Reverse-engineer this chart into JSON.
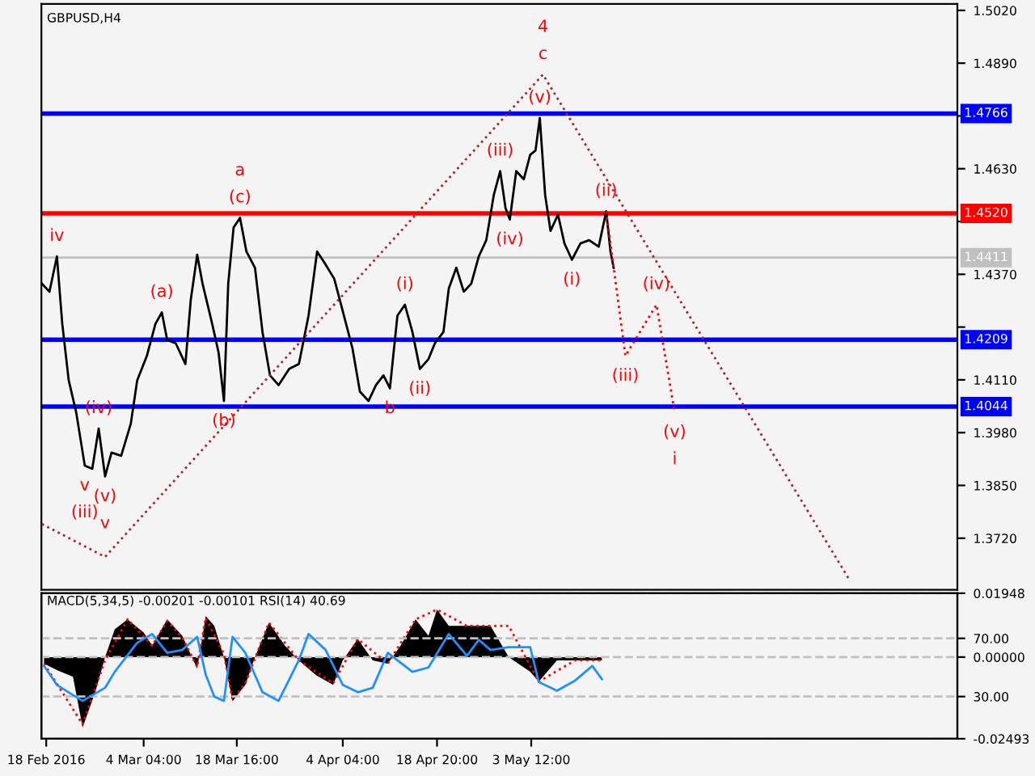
{
  "chart_data": [
    {
      "type": "line",
      "title": "GBPUSD,H4",
      "tick_labels": "y",
      "xlim": [
        "2016-02-17T06:00",
        "2016-07-08T20:00"
      ],
      "ylim": [
        1.3593,
        1.5036
      ],
      "yticks": [
        {
          "value": 1.502,
          "label": "1.5020"
        },
        {
          "value": 1.489,
          "label": "1.4890"
        },
        {
          "value": 1.476,
          "label": null
        },
        {
          "value": 1.463,
          "label": "1.4630"
        },
        {
          "value": 1.45,
          "label": null
        },
        {
          "value": 1.437,
          "label": "1.4370"
        },
        {
          "value": 1.424,
          "label": null
        },
        {
          "value": 1.411,
          "label": "1.4110"
        },
        {
          "value": 1.398,
          "label": "1.3980"
        },
        {
          "value": 1.385,
          "label": "1.3850"
        },
        {
          "value": 1.372,
          "label": "1.3720"
        }
      ],
      "series": [
        {
          "color": "#000000",
          "line_style": "solid",
          "x": [
            "2016-02-17T08:00",
            "2016-02-18T12:00",
            "2016-02-19T16:00",
            "2016-02-20T12:00",
            "2016-02-21T12:00",
            "2016-02-22T16:00",
            "2016-02-24T00:00",
            "2016-02-25T04:00",
            "2016-02-26T04:00",
            "2016-02-27T04:00",
            "2016-02-28T04:00",
            "2016-02-29T16:00",
            "2016-03-02T04:00",
            "2016-03-03T04:00",
            "2016-03-04T16:00",
            "2016-03-06T00:00",
            "2016-03-07T00:00",
            "2016-03-07T20:00",
            "2016-03-09T04:00",
            "2016-03-10T16:00",
            "2016-03-11T12:00",
            "2016-03-12T12:00",
            "2016-03-13T08:00",
            "2016-03-14T20:00",
            "2016-03-15T20:00",
            "2016-03-16T16:00",
            "2016-03-17T08:00",
            "2016-03-18T04:00",
            "2016-03-19T04:00",
            "2016-03-20T04:00",
            "2016-03-21T12:00",
            "2016-03-22T16:00",
            "2016-03-23T20:00",
            "2016-03-25T04:00",
            "2016-03-26T20:00",
            "2016-03-28T08:00",
            "2016-03-29T20:00",
            "2016-03-31T04:00",
            "2016-04-01T08:00",
            "2016-04-02T20:00",
            "2016-04-04T04:00",
            "2016-04-05T16:00",
            "2016-04-06T20:00",
            "2016-04-08T04:00",
            "2016-04-09T08:00",
            "2016-04-10T12:00",
            "2016-04-11T12:00",
            "2016-04-12T16:00",
            "2016-04-13T20:00",
            "2016-04-15T00:00",
            "2016-04-16T04:00",
            "2016-04-17T12:00",
            "2016-04-18T12:00",
            "2016-04-19T20:00",
            "2016-04-20T16:00",
            "2016-04-21T20:00",
            "2016-04-23T00:00",
            "2016-04-24T04:00",
            "2016-04-25T08:00",
            "2016-04-26T12:00",
            "2016-04-27T16:00",
            "2016-04-28T16:00",
            "2016-04-29T12:00",
            "2016-04-30T04:00",
            "2016-05-01T04:00",
            "2016-05-02T08:00",
            "2016-05-03T08:00",
            "2016-05-04T04:00",
            "2016-05-04T20:00",
            "2016-05-05T16:00",
            "2016-05-06T12:00",
            "2016-05-07T16:00",
            "2016-05-08T16:00",
            "2016-05-09T20:00",
            "2016-05-11T04:00",
            "2016-05-12T12:00",
            "2016-05-14T00:00",
            "2016-05-15T04:00",
            "2016-05-15T20:00",
            "2016-05-16T08:00"
          ],
          "values": [
            1.4347,
            1.4327,
            1.4414,
            1.4248,
            1.4109,
            1.403,
            1.3899,
            1.3891,
            1.399,
            1.3872,
            1.3931,
            1.3923,
            1.4002,
            1.4109,
            1.4169,
            1.4248,
            1.4276,
            1.4208,
            1.42,
            1.4149,
            1.4307,
            1.4418,
            1.4347,
            1.4248,
            1.4177,
            1.4058,
            1.4347,
            1.4485,
            1.4509,
            1.4426,
            1.4386,
            1.4228,
            1.4121,
            1.4097,
            1.4137,
            1.4149,
            1.4268,
            1.4426,
            1.4398,
            1.4359,
            1.4279,
            1.4188,
            1.4081,
            1.4058,
            1.4097,
            1.4121,
            1.4089,
            1.4268,
            1.4295,
            1.4228,
            1.4137,
            1.4161,
            1.42,
            1.4228,
            1.4335,
            1.4386,
            1.4327,
            1.4347,
            1.4414,
            1.4454,
            1.4565,
            1.4624,
            1.4533,
            1.4505,
            1.4624,
            1.4604,
            1.4664,
            1.4675,
            1.4755,
            1.4565,
            1.4477,
            1.4517,
            1.4446,
            1.4406,
            1.4446,
            1.4454,
            1.4438,
            1.4525,
            1.4426,
            1.4386
          ]
        },
        {
          "color": "#ff0000",
          "line_style": "dotted",
          "x": [
            "2016-05-15T04:00",
            "2016-05-18T04:00",
            "2016-05-23T00:00",
            "2016-05-25T20:00"
          ],
          "values": [
            1.4525,
            1.4169,
            1.4295,
            1.403
          ]
        },
        {
          "color": "#a52a2a",
          "line_style": "dotted",
          "x": [
            "2016-02-17T08:00",
            "2016-02-27T04:00",
            "2016-05-05T08:00",
            "2016-06-22T04:00"
          ],
          "values": [
            1.3755,
            1.3674,
            1.4862,
            1.3614
          ]
        }
      ],
      "ref_lines": [
        {
          "axis": "y",
          "value": 1.4766,
          "label": "1.4766",
          "color": "#0000ff",
          "line_style": "solid"
        },
        {
          "axis": "y",
          "value": 1.452,
          "label": "1.4520",
          "color": "#ff0000",
          "line_style": "solid"
        },
        {
          "axis": "y",
          "value": 1.4411,
          "label": "1.4411",
          "color": "#c0c0c0",
          "line_style": "solid"
        },
        {
          "axis": "y",
          "value": 1.4209,
          "label": "1.4209",
          "color": "#0000ff",
          "line_style": "solid"
        },
        {
          "axis": "y",
          "value": 1.4044,
          "label": "1.4044",
          "color": "#0000ff",
          "line_style": "solid"
        }
      ],
      "annotations": [
        {
          "text": "iv",
          "x": "2016-02-19T16:00",
          "y": 1.4414
        },
        {
          "text": "v",
          "x": "2016-02-24T00:00",
          "y": 1.3899
        },
        {
          "text": "(iii)",
          "x": "2016-02-24T00:00",
          "y": 1.3899
        },
        {
          "text": "(iv)",
          "x": "2016-02-26T04:00",
          "y": 1.399
        },
        {
          "text": "(v)",
          "x": "2016-02-27T04:00",
          "y": 1.3872
        },
        {
          "text": "v",
          "x": "2016-02-27T04:00",
          "y": 1.3872
        },
        {
          "text": "(a)",
          "x": "2016-03-07T00:00",
          "y": 1.4276
        },
        {
          "text": "(b)",
          "x": "2016-03-16T16:00",
          "y": 1.4058
        },
        {
          "text": "(c)",
          "x": "2016-03-19T04:00",
          "y": 1.4509
        },
        {
          "text": "a",
          "x": "2016-03-19T04:00",
          "y": 1.4509
        },
        {
          "text": "(i)",
          "x": "2016-04-13T20:00",
          "y": 1.4295
        },
        {
          "text": "b",
          "x": "2016-04-11T12:00",
          "y": 1.4089
        },
        {
          "text": "(ii)",
          "x": "2016-04-16T04:00",
          "y": 1.4137
        },
        {
          "text": "(iii)",
          "x": "2016-04-28T16:00",
          "y": 1.4624
        },
        {
          "text": "(iv)",
          "x": "2016-04-30T04:00",
          "y": 1.4505
        },
        {
          "text": "(v)",
          "x": "2016-05-04T20:00",
          "y": 1.4755
        },
        {
          "text": "c",
          "x": "2016-05-05T08:00",
          "y": 1.4862
        },
        {
          "text": "4",
          "x": "2016-05-05T08:00",
          "y": 1.4862
        },
        {
          "text": "(i)",
          "x": "2016-05-09T20:00",
          "y": 1.4406
        },
        {
          "text": "(ii)",
          "x": "2016-05-15T04:00",
          "y": 1.4525
        },
        {
          "text": "(iii)",
          "x": "2016-05-18T04:00",
          "y": 1.4169
        },
        {
          "text": "(iv)",
          "x": "2016-05-23T00:00",
          "y": 1.4295
        },
        {
          "text": "(v)",
          "x": "2016-05-25T20:00",
          "y": 1.403
        },
        {
          "text": "i",
          "x": "2016-05-25T20:00",
          "y": 1.403
        }
      ]
    },
    {
      "type": "area",
      "title": "MACD(5,34,5) -0.00201 -0.00101 RSI(14) 40.69",
      "xlim": [
        "2016-02-17T06:00",
        "2016-07-08T20:00"
      ],
      "ylim": [
        -0.02493,
        0.01948
      ],
      "yticks": [
        0.01948,
        {
          "value": 0,
          "label": "0.00000"
        },
        -0.02493
      ],
      "y2lim": [
        1,
        101
      ],
      "y2ticks": [
        {
          "value": 70,
          "label": "70.00"
        },
        {
          "value": 30,
          "label": "30.00"
        }
      ],
      "xticks": [
        {
          "value": "2016-02-18T00:00",
          "label": "18 Feb 2016"
        },
        {
          "value": "2016-03-04T04:00",
          "label": "4 Mar 04:00"
        },
        {
          "value": "2016-03-18T16:00",
          "label": "18 Mar 16:00"
        },
        {
          "value": "2016-04-04T04:00",
          "label": "4 Apr 04:00"
        },
        {
          "value": "2016-04-18T20:00",
          "label": "18 Apr 20:00"
        },
        {
          "value": "2016-05-03T12:00",
          "label": "3 May 12:00"
        }
      ],
      "series": [
        {
          "color": "#000000",
          "x": [
            "2016-02-17T16:00",
            "2016-02-19T16:00",
            "2016-02-22T04:00",
            "2016-02-23T16:00",
            "2016-02-25T16:00",
            "2016-02-27T04:00",
            "2016-02-28T16:00",
            "2016-03-01T16:00",
            "2016-03-04T04:00",
            "2016-03-05T12:00",
            "2016-03-07T20:00",
            "2016-03-10T04:00",
            "2016-03-12T12:00",
            "2016-03-13T20:00",
            "2016-03-15T04:00",
            "2016-03-16T16:00",
            "2016-03-18T00:00",
            "2016-03-20T00:00",
            "2016-03-21T12:00",
            "2016-03-23T16:00",
            "2016-03-26T04:00",
            "2016-03-28T08:00",
            "2016-03-31T00:00",
            "2016-04-02T16:00",
            "2016-04-04T04:00",
            "2016-04-06T12:00",
            "2016-04-08T20:00",
            "2016-04-11T04:00",
            "2016-04-13T04:00",
            "2016-04-15T12:00",
            "2016-04-17T12:00",
            "2016-04-18T20:00",
            "2016-04-20T16:00",
            "2016-04-23T12:00",
            "2016-04-27T04:00",
            "2016-04-30T00:00",
            "2016-05-03T08:00",
            "2016-05-04T16:00",
            "2016-05-07T12:00",
            "2016-05-10T08:00",
            "2016-05-13T00:00",
            "2016-05-14T12:00"
          ],
          "values": [
            -0.002,
            -0.004,
            -0.006,
            -0.0215,
            -0.0105,
            0,
            0.0085,
            0.0115,
            0.0075,
            0.0035,
            0.0115,
            0.0065,
            -0.0035,
            0.0125,
            0.0095,
            0,
            -0.0135,
            -0.0085,
            0,
            0.0105,
            0.0035,
            -0.001,
            -0.0055,
            -0.0085,
            -0.001,
            0.0055,
            -0.001,
            -0.002,
            0.0035,
            0.0115,
            0.0065,
            0.0145,
            0.0095,
            0.0095,
            0.0095,
            0,
            -0.0045,
            -0.0075,
            -0.001,
            -0.001,
            -0.001,
            -0.001
          ]
        },
        {
          "type": "line",
          "color": "#ff0000",
          "line_style": "dotted",
          "x": [
            "2016-02-17T16:00",
            "2016-02-23T16:00",
            "2016-02-27T04:00",
            "2016-03-01T16:00",
            "2016-03-05T12:00",
            "2016-03-07T20:00",
            "2016-03-10T04:00",
            "2016-03-12T12:00",
            "2016-03-13T20:00",
            "2016-03-16T16:00",
            "2016-03-18T00:00",
            "2016-03-20T00:00",
            "2016-03-23T16:00",
            "2016-03-28T08:00",
            "2016-04-02T16:00",
            "2016-04-06T12:00",
            "2016-04-11T04:00",
            "2016-04-15T12:00",
            "2016-04-18T20:00",
            "2016-04-23T12:00",
            "2016-04-30T00:00",
            "2016-05-04T16:00",
            "2016-05-10T08:00",
            "2016-05-14T12:00"
          ],
          "values": [
            -0.002,
            -0.0205,
            -0.001,
            0.0115,
            0.0035,
            0.011,
            0.006,
            -0.003,
            0.012,
            0.001,
            -0.013,
            -0.008,
            0.0105,
            -0.001,
            -0.008,
            0.0055,
            -0.002,
            0.0115,
            0.0145,
            0.0095,
            0.0095,
            -0.0075,
            -0.001,
            -0.001
          ]
        },
        {
          "type": "line",
          "axis": "y2",
          "color": "#1e90ff",
          "line_style": "solid",
          "x": [
            "2016-02-17T16:00",
            "2016-02-19T16:00",
            "2016-02-22T04:00",
            "2016-02-23T16:00",
            "2016-02-27T04:00",
            "2016-02-28T16:00",
            "2016-03-03T04:00",
            "2016-03-05T12:00",
            "2016-03-07T20:00",
            "2016-03-10T04:00",
            "2016-03-12T12:00",
            "2016-03-13T20:00",
            "2016-03-15T04:00",
            "2016-03-16T16:00",
            "2016-03-18T00:00",
            "2016-03-20T00:00",
            "2016-03-22T16:00",
            "2016-03-25T04:00",
            "2016-03-28T08:00",
            "2016-03-29T20:00",
            "2016-04-01T12:00",
            "2016-04-04T04:00",
            "2016-04-06T12:00",
            "2016-04-08T20:00",
            "2016-04-11T04:00",
            "2016-04-15T00:00",
            "2016-04-17T12:00",
            "2016-04-20T16:00",
            "2016-04-23T12:00",
            "2016-04-25T08:00",
            "2016-04-27T04:00",
            "2016-04-30T00:00",
            "2016-05-03T08:00",
            "2016-05-04T16:00",
            "2016-05-07T12:00",
            "2016-05-10T08:00",
            "2016-05-13T00:00",
            "2016-05-14T12:00"
          ],
          "values": [
            51,
            38,
            31,
            27,
            36,
            47,
            67,
            73,
            60,
            62,
            71,
            45,
            30,
            27,
            71,
            60,
            33,
            27,
            55,
            73,
            62,
            38,
            33,
            36,
            60,
            47,
            50,
            73,
            58,
            69,
            62,
            64,
            64,
            40,
            34,
            41,
            51,
            42
          ]
        }
      ],
      "grid": "y"
    }
  ]
}
